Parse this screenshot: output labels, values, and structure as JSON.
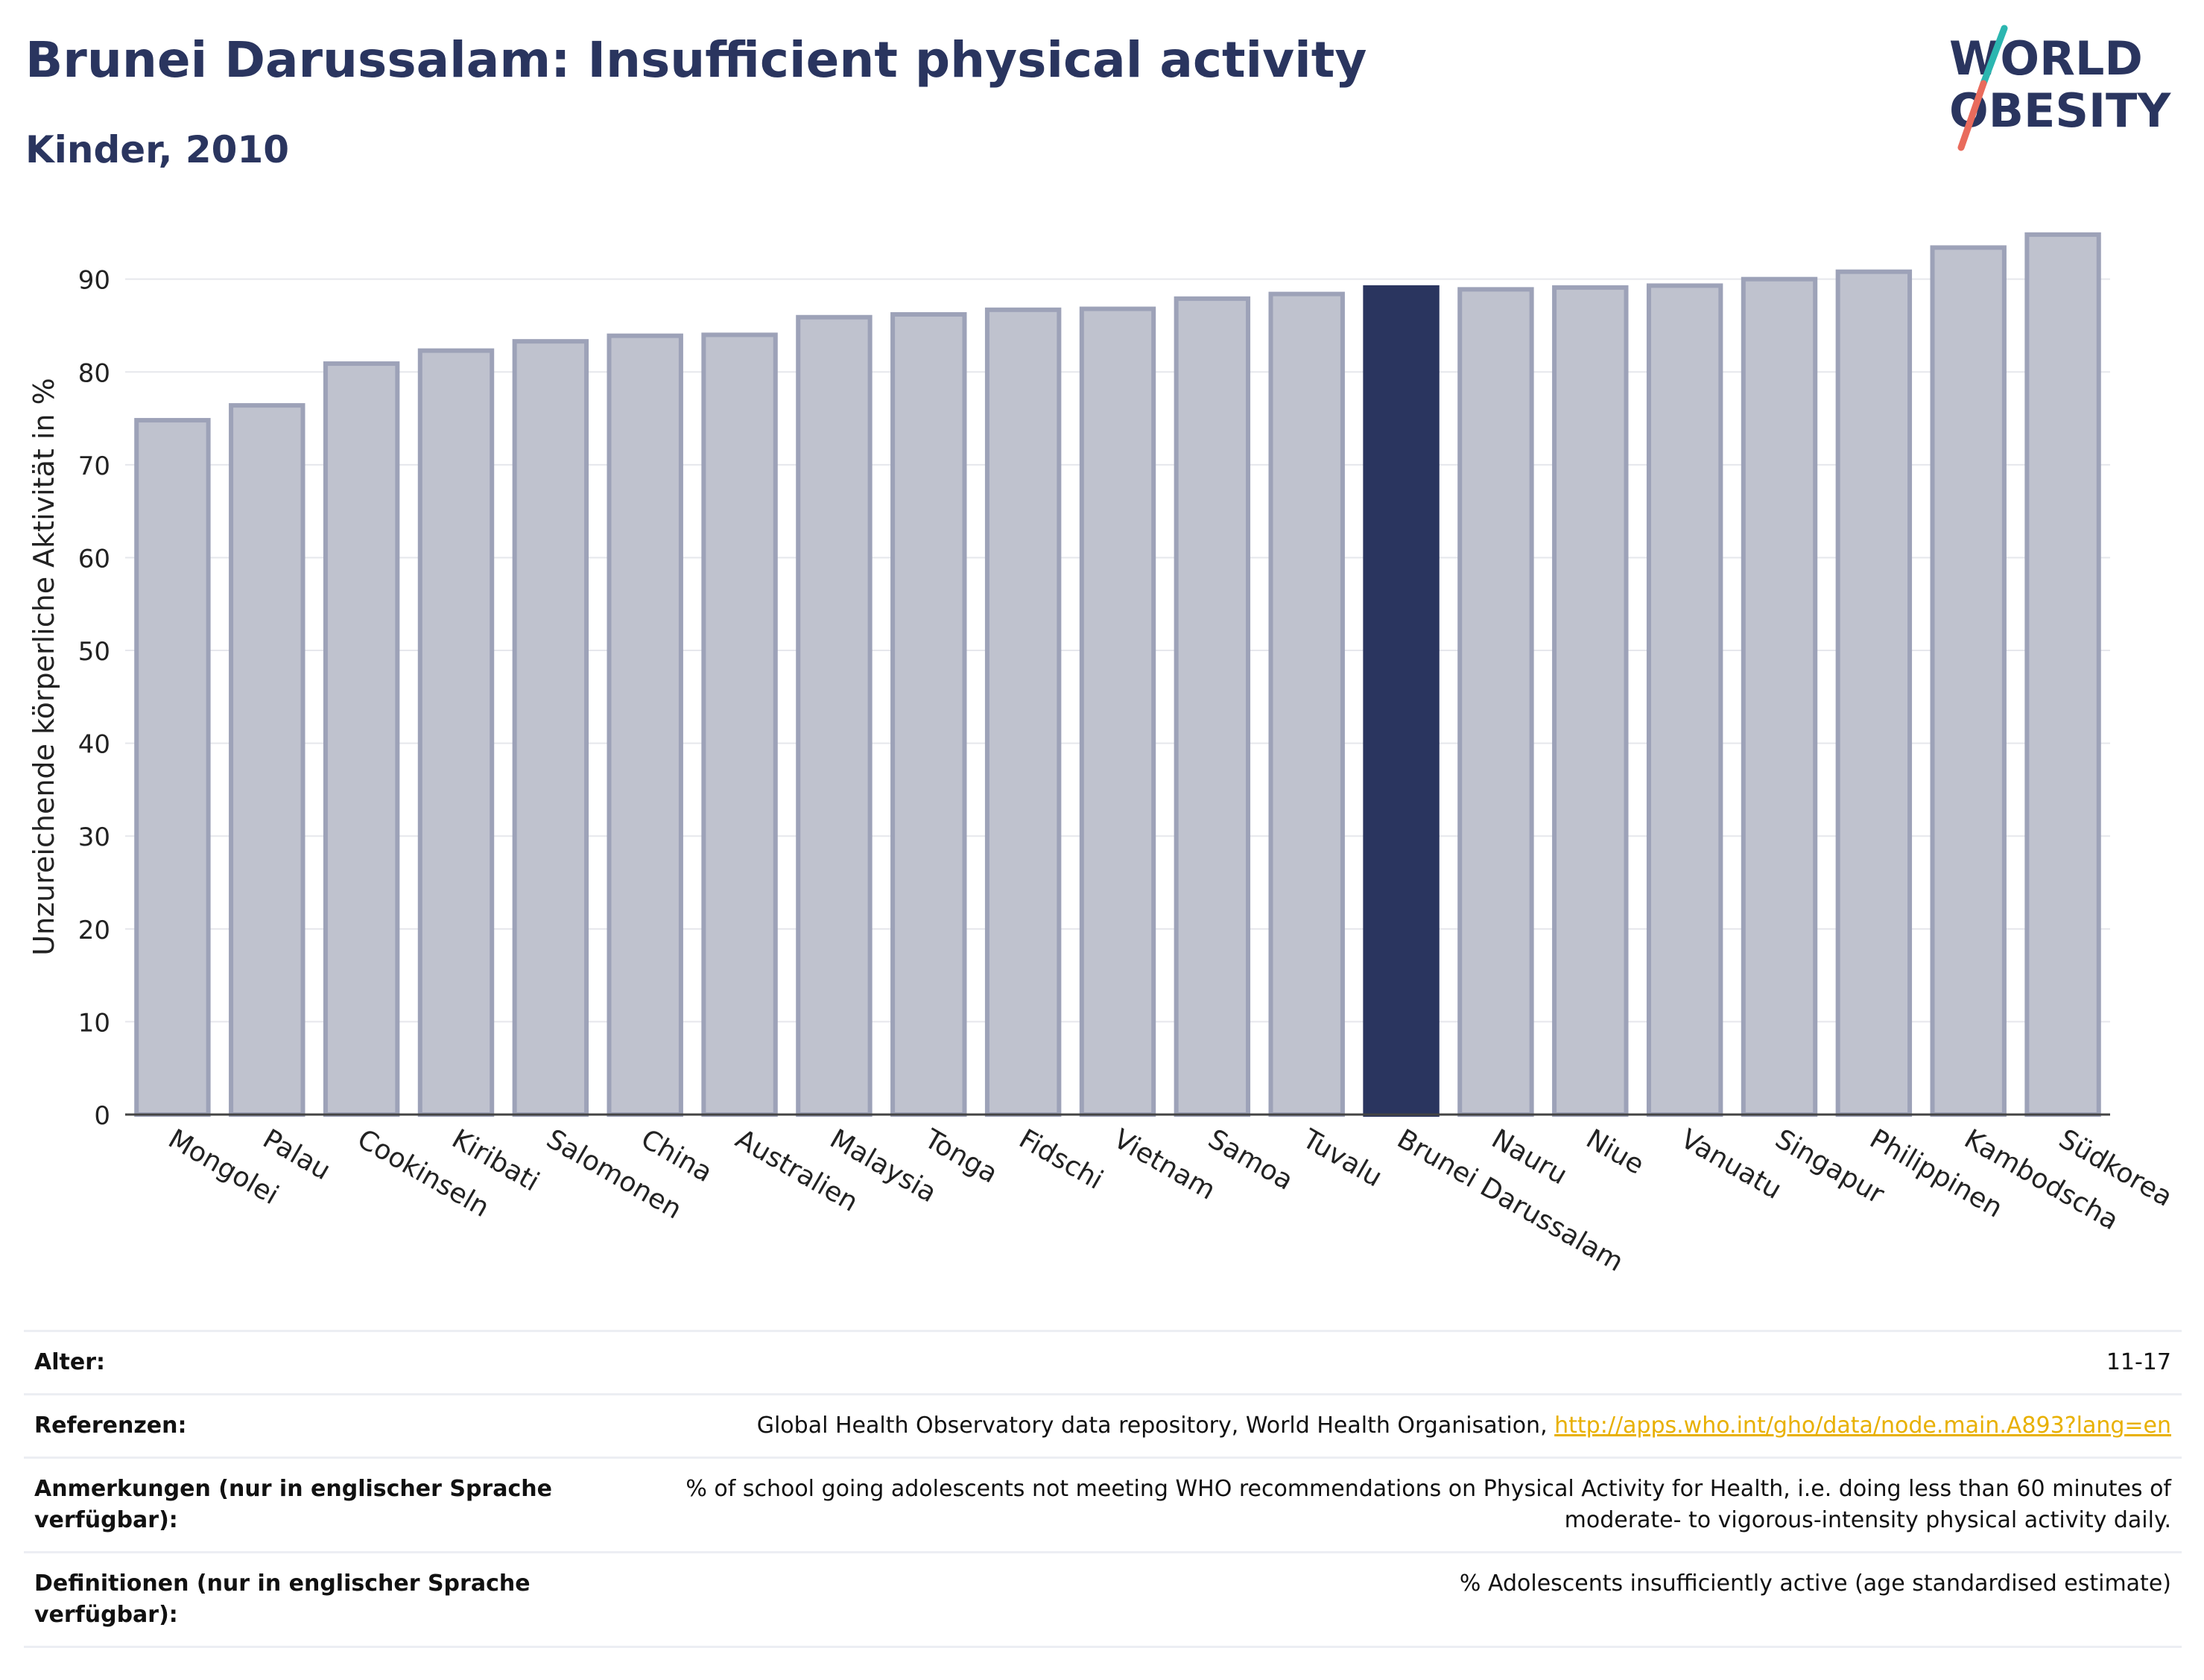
{
  "header": {
    "title": "Brunei Darussalam: Insufficient physical activity",
    "subtitle": "Kinder, 2010"
  },
  "logo": {
    "line1": "WORLD",
    "line2": "OBESITY",
    "colors": {
      "text": "#2a355f",
      "slash_top": "#2bb6b0",
      "slash_bottom": "#e96b5c"
    }
  },
  "chart_data": {
    "type": "bar",
    "title": "Brunei Darussalam: Insufficient physical activity",
    "subtitle": "Kinder, 2010",
    "xlabel": "",
    "ylabel": "Unzureichende körperliche Aktivität in %",
    "ylim": [
      0,
      98
    ],
    "yticks": [
      0,
      10,
      20,
      30,
      40,
      50,
      60,
      70,
      80,
      90
    ],
    "grid": true,
    "highlight": "Brunei Darussalam",
    "colors": {
      "bar": "#bfc2ce",
      "bar_edge": "#9da2b8",
      "highlight": "#2a355f"
    },
    "categories": [
      "Mongolei",
      "Palau",
      "Cookinseln",
      "Kiribati",
      "Salomonen",
      "China",
      "Australien",
      "Malaysia",
      "Tonga",
      "Fidschi",
      "Vietnam",
      "Samoa",
      "Tuvalu",
      "Brunei Darussalam",
      "Nauru",
      "Niue",
      "Vanuatu",
      "Singapur",
      "Philippinen",
      "Kambodscha",
      "Südkorea"
    ],
    "values": [
      74.8,
      76.4,
      80.9,
      82.3,
      83.3,
      83.9,
      84.0,
      85.9,
      86.2,
      86.7,
      86.8,
      87.9,
      88.4,
      89.1,
      88.9,
      89.1,
      89.3,
      90.0,
      90.8,
      93.4,
      94.8
    ]
  },
  "info": {
    "rows": [
      {
        "label": "Alter:",
        "value": "11-17"
      },
      {
        "label": "Referenzen:",
        "value": "Global Health Observatory data repository, World Health Organisation, ",
        "link": "http://apps.who.int/gho/data/node.main.A893?lang=en"
      },
      {
        "label": "Anmerkungen (nur in englischer Sprache verfügbar):",
        "value": "% of school going adolescents not meeting WHO recommendations on Physical Activity for Health, i.e. doing less than 60 minutes of moderate- to vigorous-intensity physical activity daily."
      },
      {
        "label": "Definitionen (nur in englischer Sprache verfügbar):",
        "value": "% Adolescents insufficiently active (age standardised estimate)"
      }
    ]
  }
}
